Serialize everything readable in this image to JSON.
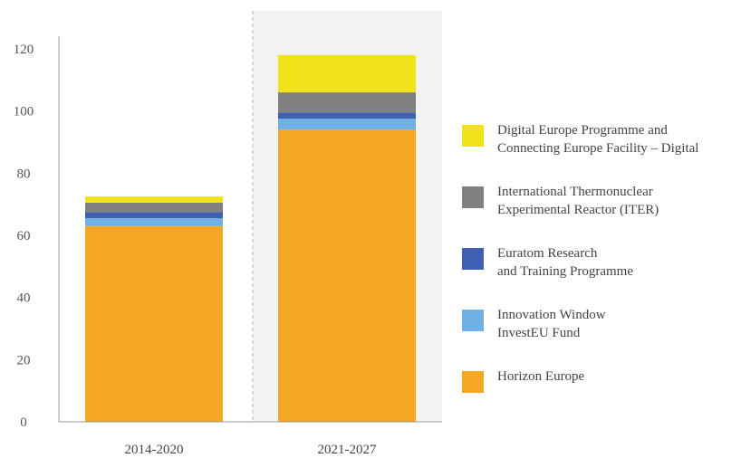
{
  "chart_data": {
    "type": "bar",
    "stacked": true,
    "categories": [
      "2014-2020",
      "2021-2027"
    ],
    "ylim": [
      0,
      120
    ],
    "yticks": [
      0,
      20,
      40,
      60,
      80,
      100,
      120
    ],
    "grid": false,
    "legend_position": "right",
    "highlighted_category": "2021-2027",
    "series": [
      {
        "name": "Horizon Europe",
        "color": "#f5a623",
        "values": [
          63.0,
          94.0
        ]
      },
      {
        "name": "Innovation Window InvestEU Fund",
        "color": "#6fb1e4",
        "values": [
          2.5,
          3.5
        ]
      },
      {
        "name": "Euratom Research and Training Programme",
        "color": "#3f5fb0",
        "values": [
          2.0,
          2.0
        ]
      },
      {
        "name": "International Thermonuclear Experimental Reactor (ITER)",
        "color": "#808080",
        "values": [
          3.0,
          6.5
        ]
      },
      {
        "name": "Digital Europe Programme and Connecting Europe Facility – Digital",
        "color": "#f2e21c",
        "values": [
          2.0,
          12.0
        ]
      }
    ]
  },
  "legend": [
    {
      "lines": [
        "Digital Europe Programme and",
        "Connecting Europe Facility – Digital"
      ],
      "color": "#f2e21c"
    },
    {
      "lines": [
        "International Thermonuclear",
        "Experimental Reactor (ITER)"
      ],
      "color": "#808080"
    },
    {
      "lines": [
        "Euratom Research",
        "and Training Programme"
      ],
      "color": "#3f5fb0"
    },
    {
      "lines": [
        "Innovation Window",
        "InvestEU Fund"
      ],
      "color": "#6fb1e4"
    },
    {
      "lines": [
        "Horizon Europe"
      ],
      "color": "#f5a623"
    }
  ]
}
